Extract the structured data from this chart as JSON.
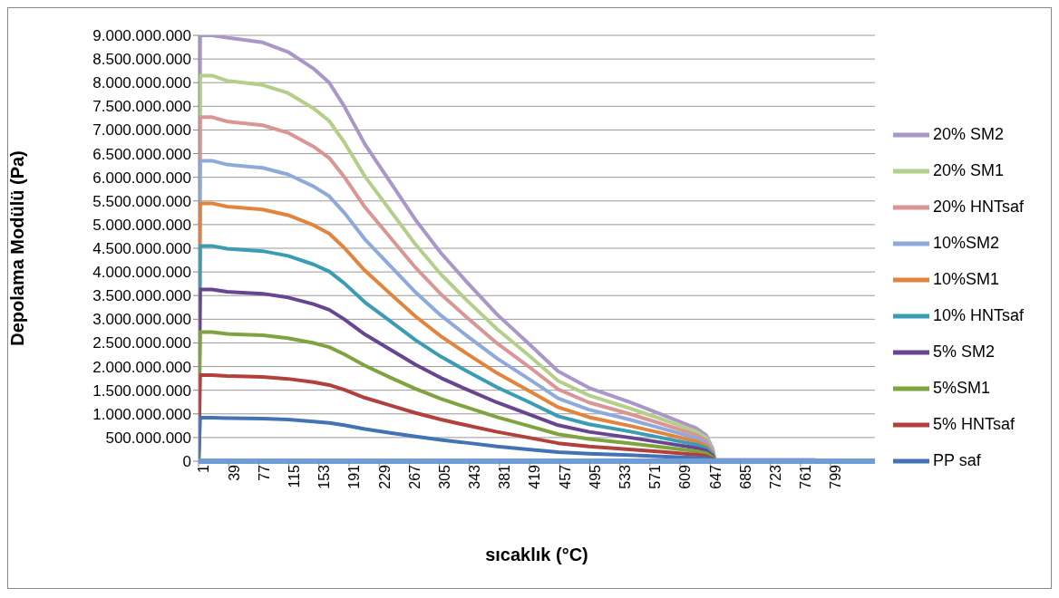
{
  "chart_data": {
    "type": "line",
    "xlabel": "sıcaklık (°C)",
    "ylabel": "Depolama Modülü (Pa)",
    "x": [
      1,
      3,
      18,
      37,
      82,
      114,
      146,
      166,
      185,
      211,
      243,
      275,
      307,
      339,
      378,
      417,
      455,
      494,
      545,
      584,
      629,
      642,
      650,
      653,
      780
    ],
    "xlim": [
      1,
      855
    ],
    "xticks": [
      1,
      39,
      77,
      115,
      153,
      191,
      229,
      267,
      305,
      343,
      381,
      419,
      457,
      495,
      533,
      571,
      609,
      647,
      685,
      723,
      761,
      799
    ],
    "ylim": [
      0,
      9000000000
    ],
    "yticks": [
      {
        "value": 0,
        "label": "0"
      },
      {
        "value": 500000000,
        "label": "500.000.000"
      },
      {
        "value": 1000000000,
        "label": "1.000.000.000"
      },
      {
        "value": 1500000000,
        "label": "1.500.000.000"
      },
      {
        "value": 2000000000,
        "label": "2.000.000.000"
      },
      {
        "value": 2500000000,
        "label": "2.500.000.000"
      },
      {
        "value": 3000000000,
        "label": "3.000.000.000"
      },
      {
        "value": 3500000000,
        "label": "3.500.000.000"
      },
      {
        "value": 4000000000,
        "label": "4.000.000.000"
      },
      {
        "value": 4500000000,
        "label": "4.500.000.000"
      },
      {
        "value": 5000000000,
        "label": "5.000.000.000"
      },
      {
        "value": 5500000000,
        "label": "5.500.000.000"
      },
      {
        "value": 6000000000,
        "label": "6.000.000.000"
      },
      {
        "value": 6500000000,
        "label": "6.500.000.000"
      },
      {
        "value": 7000000000,
        "label": "7.000.000.000"
      },
      {
        "value": 7500000000,
        "label": "7.500.000.000"
      },
      {
        "value": 8000000000,
        "label": "8.000.000.000"
      },
      {
        "value": 8500000000,
        "label": "8.500.000.000"
      },
      {
        "value": 9000000000,
        "label": "9.000.000.000"
      }
    ],
    "grid": "y",
    "legend": "right",
    "marker": "none",
    "line_style": "solid",
    "series": [
      {
        "name": "20% SM2",
        "color": "#a997c8",
        "values": [
          0,
          9000000000,
          9000000000,
          8950000000,
          8850000000,
          8650000000,
          8300000000,
          8000000000,
          7500000000,
          6700000000,
          5900000000,
          5100000000,
          4400000000,
          3800000000,
          3100000000,
          2500000000,
          1900000000,
          1550000000,
          1250000000,
          1000000000,
          700000000,
          550000000,
          270000000,
          30000000,
          30000000
        ]
      },
      {
        "name": "20% SM1",
        "color": "#b3cf8a",
        "values": [
          0,
          8150000000,
          8150000000,
          8040000000,
          7950000000,
          7780000000,
          7460000000,
          7190000000,
          6740000000,
          6020000000,
          5300000000,
          4580000000,
          3950000000,
          3410000000,
          2790000000,
          2250000000,
          1700000000,
          1390000000,
          1120000000,
          900000000,
          630000000,
          500000000,
          240000000,
          0,
          null
        ]
      },
      {
        "name": "20% HNTsaf",
        "color": "#d99694",
        "values": [
          0,
          7270000000,
          7270000000,
          7180000000,
          7100000000,
          6940000000,
          6650000000,
          6410000000,
          6010000000,
          5370000000,
          4730000000,
          4090000000,
          3530000000,
          3050000000,
          2490000000,
          2010000000,
          1520000000,
          1240000000,
          1000000000,
          800000000,
          560000000,
          440000000,
          220000000,
          0,
          null
        ]
      },
      {
        "name": "10%SM2",
        "color": "#8eaadb",
        "values": [
          0,
          6350000000,
          6350000000,
          6270000000,
          6200000000,
          6060000000,
          5810000000,
          5600000000,
          5250000000,
          4690000000,
          4130000000,
          3570000000,
          3080000000,
          2660000000,
          2170000000,
          1750000000,
          1330000000,
          1090000000,
          880000000,
          700000000,
          490000000,
          390000000,
          190000000,
          0,
          null
        ]
      },
      {
        "name": "10%SM1",
        "color": "#e2843b",
        "values": [
          0,
          5450000000,
          5450000000,
          5380000000,
          5320000000,
          5200000000,
          4990000000,
          4810000000,
          4510000000,
          4030000000,
          3540000000,
          3060000000,
          2640000000,
          2280000000,
          1860000000,
          1500000000,
          1140000000,
          930000000,
          750000000,
          600000000,
          420000000,
          330000000,
          160000000,
          0,
          null
        ]
      },
      {
        "name": "10% HNTsaf",
        "color": "#3b9cb4",
        "values": [
          0,
          4550000000,
          4550000000,
          4490000000,
          4440000000,
          4340000000,
          4160000000,
          4010000000,
          3760000000,
          3360000000,
          2960000000,
          2560000000,
          2210000000,
          1910000000,
          1560000000,
          1260000000,
          950000000,
          780000000,
          630000000,
          500000000,
          350000000,
          280000000,
          140000000,
          0,
          null
        ]
      },
      {
        "name": "5% SM2",
        "color": "#67458f",
        "values": [
          0,
          3630000000,
          3630000000,
          3580000000,
          3540000000,
          3460000000,
          3320000000,
          3200000000,
          3000000000,
          2680000000,
          2360000000,
          2040000000,
          1760000000,
          1520000000,
          1240000000,
          1000000000,
          760000000,
          620000000,
          500000000,
          400000000,
          280000000,
          220000000,
          110000000,
          0,
          null
        ]
      },
      {
        "name": "5%SM1",
        "color": "#7fa33f",
        "values": [
          0,
          2730000000,
          2730000000,
          2690000000,
          2660000000,
          2600000000,
          2500000000,
          2410000000,
          2260000000,
          2020000000,
          1770000000,
          1530000000,
          1320000000,
          1140000000,
          930000000,
          750000000,
          570000000,
          470000000,
          380000000,
          300000000,
          210000000,
          170000000,
          80000000,
          0,
          null
        ]
      },
      {
        "name": "5% HNTsaf",
        "color": "#b2403d",
        "values": [
          0,
          1820000000,
          1820000000,
          1800000000,
          1780000000,
          1740000000,
          1670000000,
          1610000000,
          1510000000,
          1340000000,
          1180000000,
          1020000000,
          880000000,
          760000000,
          620000000,
          500000000,
          380000000,
          310000000,
          250000000,
          200000000,
          140000000,
          110000000,
          50000000,
          0,
          null
        ]
      },
      {
        "name": "PP saf",
        "color": "#4373b5",
        "values": [
          0,
          920000000,
          920000000,
          910000000,
          900000000,
          880000000,
          840000000,
          810000000,
          760000000,
          680000000,
          600000000,
          520000000,
          450000000,
          390000000,
          310000000,
          250000000,
          190000000,
          160000000,
          130000000,
          100000000,
          70000000,
          60000000,
          30000000,
          0,
          null
        ]
      }
    ]
  }
}
